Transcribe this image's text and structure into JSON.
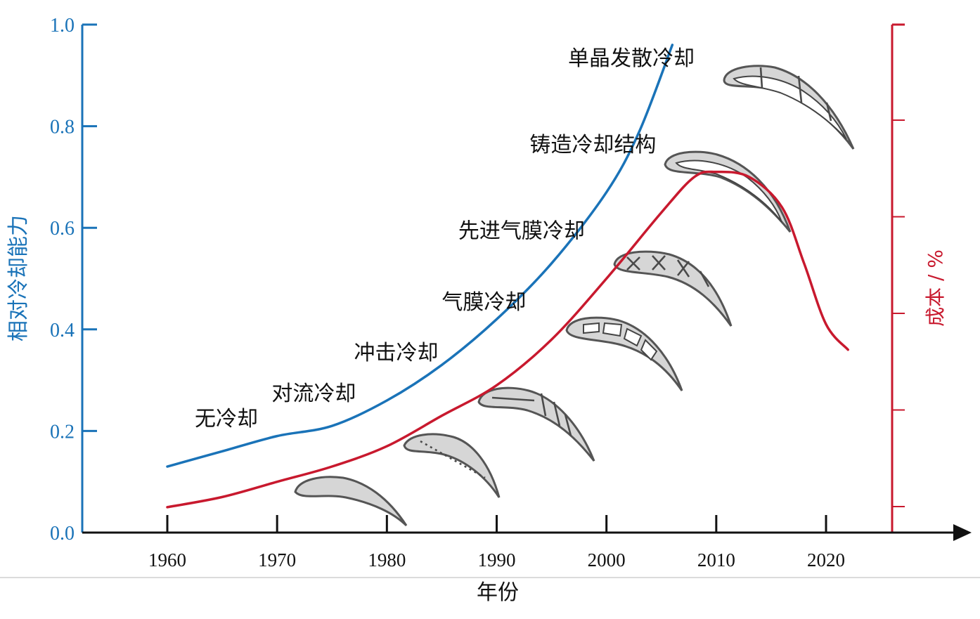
{
  "chart_data": {
    "type": "line",
    "x_axis": {
      "label": "年份",
      "ticks": [
        "1960",
        "1970",
        "1980",
        "1990",
        "2000",
        "2010",
        "2020"
      ],
      "range": [
        1960,
        2020
      ]
    },
    "y_axis_left": {
      "label": "相对冷却能力",
      "ticks": [
        "0.0",
        "0.2",
        "0.4",
        "0.6",
        "0.8",
        "1.0"
      ],
      "range": [
        0,
        1.0
      ],
      "color": "#1a73b8"
    },
    "y_axis_right": {
      "label": "成本 / %",
      "color": "#c8192e",
      "ticks": [],
      "range": [
        0,
        1.0
      ]
    },
    "series": [
      {
        "color": "#1a73b8",
        "axis": "left",
        "x": [
          1960,
          1965,
          1970,
          1975,
          1980,
          1985,
          1990,
          1995,
          2000,
          2003,
          2006
        ],
        "y": [
          0.13,
          0.16,
          0.19,
          0.21,
          0.26,
          0.33,
          0.42,
          0.53,
          0.67,
          0.79,
          0.96
        ]
      },
      {
        "color": "#c8192e",
        "axis": "right",
        "x": [
          1960,
          1965,
          1970,
          1975,
          1980,
          1985,
          1990,
          1995,
          2000,
          2005,
          2008,
          2010,
          2013,
          2016,
          2018,
          2020,
          2022
        ],
        "y": [
          0.05,
          0.07,
          0.1,
          0.13,
          0.17,
          0.23,
          0.29,
          0.38,
          0.5,
          0.63,
          0.7,
          0.71,
          0.7,
          0.64,
          0.53,
          0.41,
          0.36
        ]
      }
    ],
    "annotations": [
      {
        "text": "无冷却",
        "x": 1962.5,
        "y": 0.21
      },
      {
        "text": "对流冷却",
        "x": 1969.5,
        "y": 0.26
      },
      {
        "text": "冲击冷却",
        "x": 1977,
        "y": 0.34
      },
      {
        "text": "气膜冷却",
        "x": 1985,
        "y": 0.44
      },
      {
        "text": "先进气膜冷却",
        "x": 1986.5,
        "y": 0.58
      },
      {
        "text": "铸造冷却结构",
        "x": 1993,
        "y": 0.75
      },
      {
        "text": "单晶发散冷却",
        "x": 1996.5,
        "y": 0.92
      }
    ],
    "grid": false,
    "legend": "none"
  },
  "icons": [
    "solid-blade-icon",
    "hatched-blade-icon",
    "ribbed-blade-icon",
    "multi-cavity-blade-icon",
    "lattice-blade-icon",
    "hollow-blade-icon",
    "strut-blade-icon"
  ]
}
